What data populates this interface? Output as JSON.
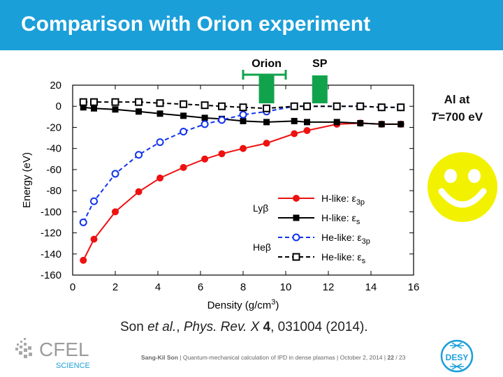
{
  "slide": {
    "title": "Comparison with Orion experiment",
    "annotation_al": "Al at",
    "annotation_temp": "T=700 eV",
    "annotation_orion": "Orion",
    "annotation_sp": "SP",
    "citation": "Son et al., Phys. Rev. X 4, 031004 (2014).",
    "citation_parts": {
      "author": "Son ",
      "etal": "et al.",
      "sep": ", ",
      "journal": "Phys. Rev. X",
      "vol": " 4",
      "rest": ", 031004 (2014)."
    },
    "footer": {
      "author": "Sang-Kil Son",
      "sep": " | ",
      "talk": "Quantum-mechanical calculation of IPD in dense plasmas",
      "date": "October 2, 2014",
      "page": "22",
      "total": "/ 23"
    },
    "logo_cfel_top": "CFEL",
    "logo_cfel_bottom": "SCIENCE",
    "logo_desy": "DESY"
  },
  "colors": {
    "title_bar": "#1a9fd9",
    "h_like": "#ee1111",
    "he_like_blue": "#1133ee",
    "black": "#000000",
    "arrow_green": "#11a34c",
    "smiley_yellow": "#f2f200"
  },
  "chart_data": {
    "type": "line",
    "xlabel": "Density (g/cm3)",
    "ylabel": "Energy (eV)",
    "xlim": [
      0,
      16
    ],
    "ylim": [
      -160,
      20
    ],
    "xticks": [
      0,
      2,
      4,
      6,
      8,
      10,
      12,
      14,
      16
    ],
    "yticks": [
      20,
      0,
      -20,
      -40,
      -60,
      -80,
      -100,
      -120,
      -140,
      -160
    ],
    "grid": false,
    "legend_position": "bottom-right",
    "legend_groups": [
      {
        "label": "Lyβ",
        "series": [
          0,
          1
        ]
      },
      {
        "label": "Heβ",
        "series": [
          2,
          3
        ]
      }
    ],
    "series": [
      {
        "name": "H-like: ε3p",
        "color": "#ee1111",
        "line": "solid",
        "marker": "filled-circle",
        "x": [
          0.5,
          1.0,
          2.0,
          3.1,
          4.1,
          5.2,
          6.2,
          7.0,
          8.0,
          9.1,
          10.4,
          11.0,
          12.4,
          13.5,
          14.5,
          15.4
        ],
        "y": [
          -146,
          -126,
          -100,
          -81,
          -68,
          -58,
          -50,
          -45,
          -40,
          -35,
          -26,
          -23,
          -17,
          -16,
          -17,
          -17
        ]
      },
      {
        "name": "H-like: εs",
        "color": "#000000",
        "line": "solid",
        "marker": "filled-square",
        "x": [
          0.5,
          1.0,
          2.0,
          3.1,
          4.1,
          5.2,
          6.2,
          7.0,
          8.0,
          9.1,
          10.4,
          11.0,
          12.4,
          13.5,
          14.5,
          15.4
        ],
        "y": [
          -1,
          -2,
          -3,
          -5,
          -7,
          -9,
          -11,
          -12,
          -14,
          -15,
          -14,
          -15,
          -15,
          -16,
          -17,
          -17
        ]
      },
      {
        "name": "He-like: ε3p",
        "color": "#1133ee",
        "line": "dashed",
        "marker": "open-circle",
        "x": [
          0.5,
          1.0,
          2.0,
          3.1,
          4.1,
          5.2,
          6.2,
          7.0,
          8.0,
          9.1,
          10.4,
          11.0,
          12.4,
          13.5,
          14.5,
          15.4
        ],
        "y": [
          -110,
          -90,
          -64,
          -46,
          -34,
          -24,
          -17,
          -13,
          -8,
          -5,
          0,
          0,
          0,
          0,
          -1,
          -1
        ]
      },
      {
        "name": "He-like: εs",
        "color": "#000000",
        "line": "dashed",
        "marker": "open-square",
        "x": [
          0.5,
          1.0,
          2.0,
          3.1,
          4.1,
          5.2,
          6.2,
          7.0,
          8.0,
          9.1,
          10.4,
          11.0,
          12.4,
          13.5,
          14.5,
          15.4
        ],
        "y": [
          4,
          4,
          4,
          4,
          3,
          2,
          1,
          0,
          -1,
          -2,
          0,
          0,
          0,
          0,
          -1,
          -1
        ]
      }
    ],
    "annotations": {
      "orion_range": [
        8.0,
        10.0
      ],
      "orion_arrow_x": 9.1,
      "sp_arrow_x": 11.6
    }
  }
}
